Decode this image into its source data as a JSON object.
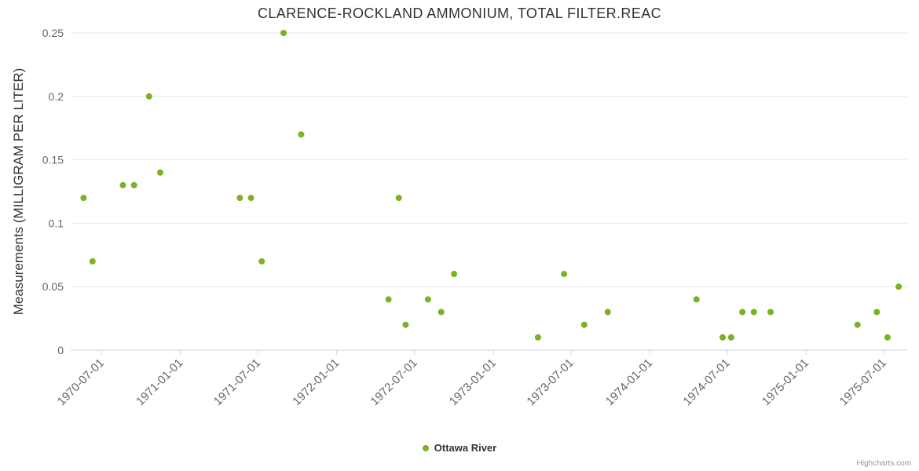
{
  "credits_label": "Highcharts.com",
  "colors": {
    "point_green": "#7cb123",
    "grid": "#e6e6e6",
    "axis": "#ccd6eb",
    "title_text": "#333333",
    "tick_text": "#666666",
    "credits_text": "#999999"
  },
  "chart_data": {
    "type": "scatter",
    "title": "CLARENCE-ROCKLAND AMMONIUM, TOTAL FILTER.REAC",
    "xlabel": "",
    "ylabel": "Measurements (MILLIGRAM PER LITER)",
    "ylim": [
      0,
      0.25
    ],
    "y_ticks": [
      0,
      0.05,
      0.1,
      0.15,
      0.2,
      0.25
    ],
    "x_ticks": [
      "1970-07-01",
      "1971-01-01",
      "1971-07-01",
      "1972-01-01",
      "1972-07-01",
      "1973-01-01",
      "1973-07-01",
      "1974-01-01",
      "1974-07-01",
      "1975-01-01",
      "1975-07-01"
    ],
    "x_range": [
      "1970-04-20",
      "1975-08-25"
    ],
    "grid": true,
    "legend_position": "bottom",
    "series": [
      {
        "name": "Ottawa River",
        "color": "#7cb123",
        "points": [
          [
            "1970-05-20",
            0.12
          ],
          [
            "1970-06-10",
            0.07
          ],
          [
            "1970-08-20",
            0.13
          ],
          [
            "1970-09-15",
            0.13
          ],
          [
            "1970-10-20",
            0.2
          ],
          [
            "1970-11-15",
            0.14
          ],
          [
            "1971-05-20",
            0.12
          ],
          [
            "1971-06-15",
            0.12
          ],
          [
            "1971-07-10",
            0.07
          ],
          [
            "1971-08-30",
            0.25
          ],
          [
            "1971-10-10",
            0.17
          ],
          [
            "1972-05-01",
            0.04
          ],
          [
            "1972-05-25",
            0.12
          ],
          [
            "1972-06-10",
            0.02
          ],
          [
            "1972-08-01",
            0.04
          ],
          [
            "1972-09-01",
            0.03
          ],
          [
            "1972-10-01",
            0.06
          ],
          [
            "1973-04-15",
            0.01
          ],
          [
            "1973-06-15",
            0.06
          ],
          [
            "1973-08-01",
            0.02
          ],
          [
            "1973-09-25",
            0.03
          ],
          [
            "1974-04-20",
            0.04
          ],
          [
            "1974-06-20",
            0.01
          ],
          [
            "1974-07-10",
            0.01
          ],
          [
            "1974-08-05",
            0.03
          ],
          [
            "1974-09-01",
            0.03
          ],
          [
            "1974-10-10",
            0.03
          ],
          [
            "1975-05-01",
            0.02
          ],
          [
            "1975-06-15",
            0.03
          ],
          [
            "1975-07-10",
            0.01
          ],
          [
            "1975-08-05",
            0.05
          ]
        ]
      }
    ]
  }
}
